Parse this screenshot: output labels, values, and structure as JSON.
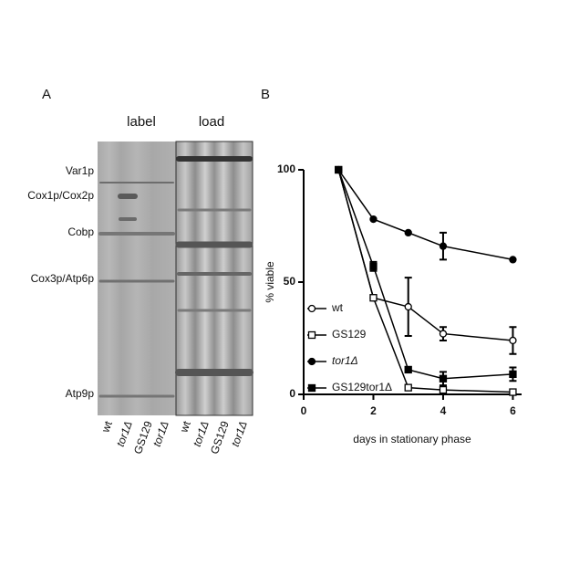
{
  "panel_a": {
    "panel_label": "A",
    "header_left": "label",
    "header_right": "load",
    "bands": [
      "Var1p",
      "Cox1p/Cox2p",
      "Cobp",
      "Cox3p/Atp6p",
      "Atp9p"
    ],
    "label_lanes": [
      "wt",
      "tor1Δ",
      "GS129",
      "tor1Δ"
    ],
    "load_lanes": [
      "wt",
      "tor1Δ",
      "GS129",
      "tor1Δ"
    ]
  },
  "chart_data": {
    "type": "line",
    "panel_label": "B",
    "x_label": "days in stationary phase",
    "y_label": "% viable",
    "xlim": [
      0,
      6.25
    ],
    "xticks": [
      0,
      2,
      4,
      6
    ],
    "ylim": [
      0,
      100
    ],
    "yticks": [
      0,
      50,
      100
    ],
    "x": [
      1,
      2,
      3,
      4,
      6
    ],
    "series": [
      {
        "name": "wt",
        "color": "#000000",
        "marker": "circle",
        "filled": false,
        "values": [
          100,
          43,
          39,
          27,
          24
        ],
        "errors": [
          null,
          null,
          13,
          3,
          6
        ]
      },
      {
        "name": "GS129",
        "color": "#000000",
        "marker": "square",
        "filled": false,
        "values": [
          100,
          43,
          3,
          2,
          1
        ],
        "errors": [
          null,
          null,
          null,
          null,
          null
        ]
      },
      {
        "name": "tor1Δ",
        "color": "#000000",
        "marker": "circle",
        "filled": true,
        "values": [
          100,
          78,
          72,
          66,
          60
        ],
        "errors": [
          null,
          null,
          null,
          6,
          null
        ]
      },
      {
        "name": "GS129tor1Δ",
        "color": "#000000",
        "marker": "square",
        "filled": true,
        "values": [
          100,
          57,
          11,
          7,
          9
        ],
        "errors": [
          null,
          2,
          null,
          3,
          3
        ]
      }
    ]
  }
}
